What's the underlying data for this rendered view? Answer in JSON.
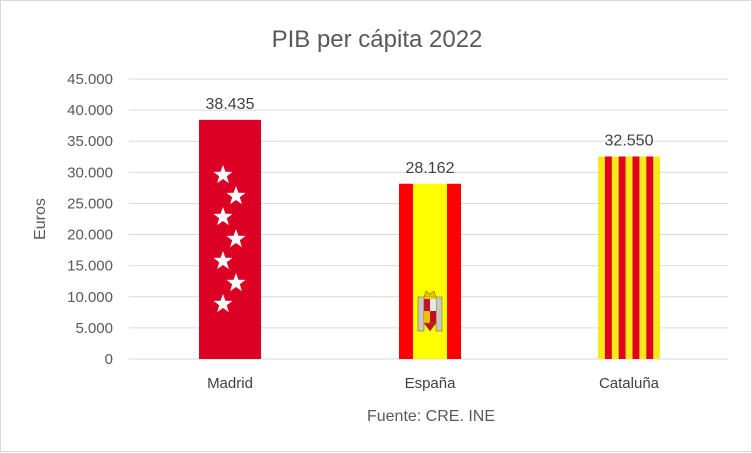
{
  "chart_data": {
    "type": "bar",
    "title": "PIB per cápita 2022",
    "ylabel": "Euros",
    "xlabel": "",
    "source": "Fuente: CRE. INE",
    "categories": [
      "Madrid",
      "España",
      "Cataluña"
    ],
    "values": [
      38435,
      28162,
      32550
    ],
    "data_labels": [
      "38.435",
      "28.162",
      "32.550"
    ],
    "bar_patterns": [
      "flag-madrid",
      "flag-spain",
      "flag-catalonia"
    ],
    "ylim": [
      0,
      45000
    ],
    "y_ticks": [
      0,
      5000,
      10000,
      15000,
      20000,
      25000,
      30000,
      35000,
      40000,
      45000
    ],
    "y_tick_labels": [
      "0",
      "5.000",
      "10.000",
      "15.000",
      "20.000",
      "25.000",
      "30.000",
      "35.000",
      "40.000",
      "45.000"
    ],
    "grid": true,
    "legend": "none",
    "colors": {
      "madrid_red": "#dc0025",
      "spain_red": "#ff0000",
      "spain_yellow": "#ffff00",
      "catalonia_red": "#e2001a",
      "catalonia_yellow": "#f6e91b",
      "gridline": "#d9d9d9",
      "text": "#595959"
    }
  }
}
